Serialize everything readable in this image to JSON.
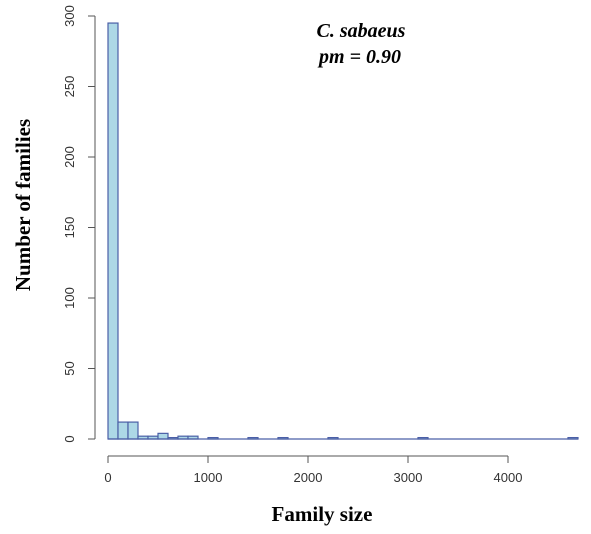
{
  "chart_data": {
    "type": "bar",
    "xlabel": "Family size",
    "ylabel": "Number of families",
    "annotation": {
      "line1": "C. sabaeus",
      "line2": "pm = 0.90"
    },
    "x_range": [
      0,
      4700
    ],
    "ylim": [
      0,
      300
    ],
    "x_ticks": [
      0,
      1000,
      2000,
      3000,
      4000
    ],
    "y_ticks": [
      0,
      50,
      100,
      150,
      200,
      250,
      300
    ],
    "bin_width": 100,
    "bins": [
      {
        "start": 0,
        "end": 100,
        "count": 295
      },
      {
        "start": 100,
        "end": 200,
        "count": 12
      },
      {
        "start": 200,
        "end": 300,
        "count": 12
      },
      {
        "start": 300,
        "end": 400,
        "count": 2
      },
      {
        "start": 400,
        "end": 500,
        "count": 2
      },
      {
        "start": 500,
        "end": 600,
        "count": 4
      },
      {
        "start": 600,
        "end": 700,
        "count": 1
      },
      {
        "start": 700,
        "end": 800,
        "count": 2
      },
      {
        "start": 800,
        "end": 900,
        "count": 2
      },
      {
        "start": 1000,
        "end": 1100,
        "count": 1
      },
      {
        "start": 1400,
        "end": 1500,
        "count": 1
      },
      {
        "start": 1700,
        "end": 1800,
        "count": 1
      },
      {
        "start": 2200,
        "end": 2300,
        "count": 1
      },
      {
        "start": 3100,
        "end": 3200,
        "count": 1
      },
      {
        "start": 4600,
        "end": 4700,
        "count": 1
      }
    ],
    "colors": {
      "bar_fill": "#add8e6",
      "bar_stroke": "#4b5fa6",
      "axis": "#555555"
    },
    "grid": false,
    "legend": "none"
  }
}
